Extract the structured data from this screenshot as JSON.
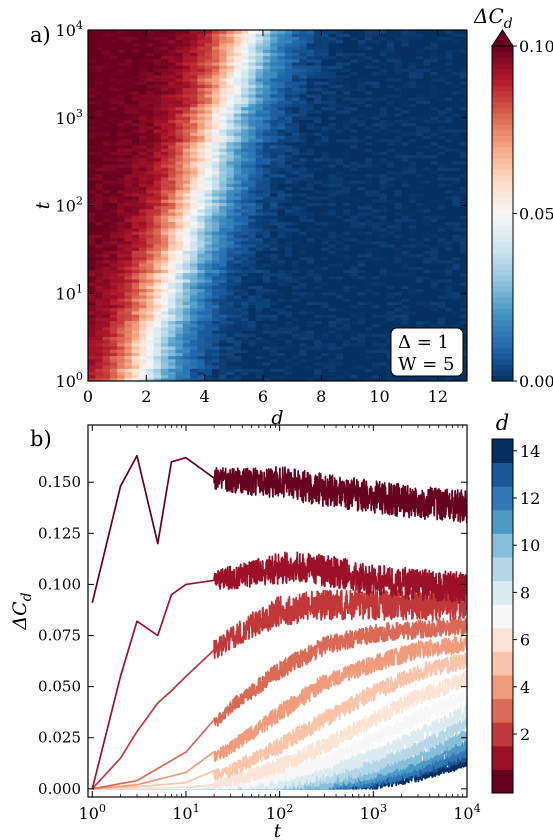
{
  "panels": {
    "a": {
      "label": "a)"
    },
    "b": {
      "label": "b)"
    }
  },
  "chart_data": [
    {
      "type": "heatmap",
      "panel_label": "a)",
      "xlabel": "d",
      "ylabel": "t",
      "xlim": [
        0,
        13
      ],
      "ylim": [
        1,
        10000
      ],
      "y_scale": "log",
      "x_ticks": [
        0,
        2,
        4,
        6,
        8,
        10,
        12
      ],
      "y_ticks": [
        1,
        10,
        100,
        1000,
        10000
      ],
      "y_tick_labels": [
        "10^0",
        "10^1",
        "10^2",
        "10^3",
        "10^4"
      ],
      "colorbar": {
        "label": "ΔC_d",
        "range": [
          0.0,
          0.1
        ],
        "ticks": [
          "0.00",
          "0.05",
          "0.10"
        ],
        "colormap": "RdBu_r",
        "extend": "max"
      },
      "annotation": [
        "Δ = 1",
        "W = 5"
      ],
      "annotation_position": "bottom-right",
      "front_samples": {
        "t": [
          1,
          10,
          100,
          1000,
          10000
        ],
        "d_at_half_value": [
          1.7,
          2.7,
          3.7,
          4.6,
          5.6
        ]
      }
    },
    {
      "type": "line",
      "panel_label": "b)",
      "xlabel": "t",
      "ylabel": "ΔC_d",
      "x_scale": "log",
      "xlim": [
        0.9,
        10000
      ],
      "ylim": [
        -0.004,
        0.178
      ],
      "x_ticks": [
        1,
        10,
        100,
        1000,
        10000
      ],
      "x_tick_labels": [
        "10^0",
        "10^1",
        "10^2",
        "10^3",
        "10^4"
      ],
      "y_ticks": [
        0.0,
        0.025,
        0.05,
        0.075,
        0.1,
        0.125,
        0.15
      ],
      "y_tick_labels": [
        "0.000",
        "0.025",
        "0.050",
        "0.075",
        "0.100",
        "0.125",
        "0.150"
      ],
      "colorbar": {
        "label": "d",
        "ticks": [
          2,
          4,
          6,
          8,
          10,
          12,
          14
        ],
        "range": [
          0,
          14
        ],
        "colormap": "RdBu"
      },
      "series": [
        {
          "d": 0,
          "x": [
            1,
            2,
            3,
            5,
            7,
            10,
            20,
            50,
            100,
            300,
            1000,
            3000,
            10000
          ],
          "values": [
            0.091,
            0.148,
            0.163,
            0.12,
            0.16,
            0.162,
            0.152,
            0.15,
            0.15,
            0.146,
            0.143,
            0.14,
            0.138
          ]
        },
        {
          "d": 1,
          "x": [
            1,
            2,
            3,
            5,
            7,
            10,
            20,
            50,
            100,
            200,
            500,
            1000,
            3000,
            10000
          ],
          "values": [
            0.0,
            0.055,
            0.082,
            0.075,
            0.095,
            0.1,
            0.102,
            0.105,
            0.108,
            0.108,
            0.105,
            0.102,
            0.1,
            0.098
          ]
        },
        {
          "d": 2,
          "x": [
            1,
            2,
            3,
            5,
            7,
            10,
            20,
            50,
            100,
            300,
            1000,
            3000,
            10000
          ],
          "values": [
            0.0,
            0.015,
            0.028,
            0.042,
            0.048,
            0.055,
            0.068,
            0.08,
            0.087,
            0.09,
            0.09,
            0.09,
            0.09
          ]
        },
        {
          "d": 3,
          "x": [
            1,
            3,
            10,
            30,
            100,
            300,
            1000,
            3000,
            10000
          ],
          "values": [
            0.0,
            0.004,
            0.018,
            0.04,
            0.058,
            0.07,
            0.076,
            0.078,
            0.08
          ]
        },
        {
          "d": 4,
          "x": [
            1,
            3,
            10,
            30,
            100,
            300,
            1000,
            3000,
            10000
          ],
          "values": [
            0.0,
            0.002,
            0.008,
            0.02,
            0.037,
            0.052,
            0.061,
            0.068,
            0.071
          ]
        },
        {
          "d": 5,
          "x": [
            1,
            3,
            10,
            30,
            100,
            300,
            1000,
            3000,
            10000
          ],
          "values": [
            0.0,
            0.001,
            0.003,
            0.009,
            0.021,
            0.034,
            0.047,
            0.057,
            0.063
          ]
        },
        {
          "d": 6,
          "x": [
            1,
            3,
            10,
            30,
            100,
            300,
            1000,
            3000,
            10000
          ],
          "values": [
            0.0,
            0.0,
            0.001,
            0.004,
            0.011,
            0.021,
            0.034,
            0.045,
            0.054
          ]
        },
        {
          "d": 7,
          "x": [
            1,
            10,
            30,
            100,
            300,
            1000,
            3000,
            10000
          ],
          "values": [
            0.0,
            0.0,
            0.002,
            0.006,
            0.013,
            0.024,
            0.035,
            0.045
          ]
        },
        {
          "d": 8,
          "x": [
            1,
            10,
            30,
            100,
            300,
            1000,
            3000,
            10000
          ],
          "values": [
            0.0,
            0.0,
            0.001,
            0.003,
            0.008,
            0.016,
            0.026,
            0.038
          ]
        },
        {
          "d": 9,
          "x": [
            1,
            10,
            30,
            100,
            300,
            1000,
            3000,
            10000
          ],
          "values": [
            0.0,
            0.0,
            0.0,
            0.002,
            0.005,
            0.011,
            0.02,
            0.032
          ]
        },
        {
          "d": 10,
          "x": [
            1,
            10,
            100,
            300,
            1000,
            3000,
            10000
          ],
          "values": [
            0.0,
            0.0,
            0.001,
            0.003,
            0.008,
            0.015,
            0.026
          ]
        },
        {
          "d": 11,
          "x": [
            1,
            10,
            100,
            300,
            1000,
            3000,
            10000
          ],
          "values": [
            0.0,
            0.0,
            0.001,
            0.002,
            0.006,
            0.012,
            0.022
          ]
        },
        {
          "d": 12,
          "x": [
            1,
            10,
            100,
            300,
            1000,
            3000,
            10000
          ],
          "values": [
            0.0,
            0.0,
            0.0,
            0.001,
            0.004,
            0.009,
            0.018
          ]
        },
        {
          "d": 13,
          "x": [
            1,
            10,
            100,
            300,
            1000,
            3000,
            10000
          ],
          "values": [
            0.0,
            0.0,
            0.0,
            0.001,
            0.003,
            0.008,
            0.016
          ]
        },
        {
          "d": 14,
          "x": [
            1,
            10,
            100,
            300,
            1000,
            3000,
            10000
          ],
          "values": [
            0.0,
            0.0,
            0.0,
            0.001,
            0.002,
            0.006,
            0.013
          ]
        }
      ]
    }
  ]
}
